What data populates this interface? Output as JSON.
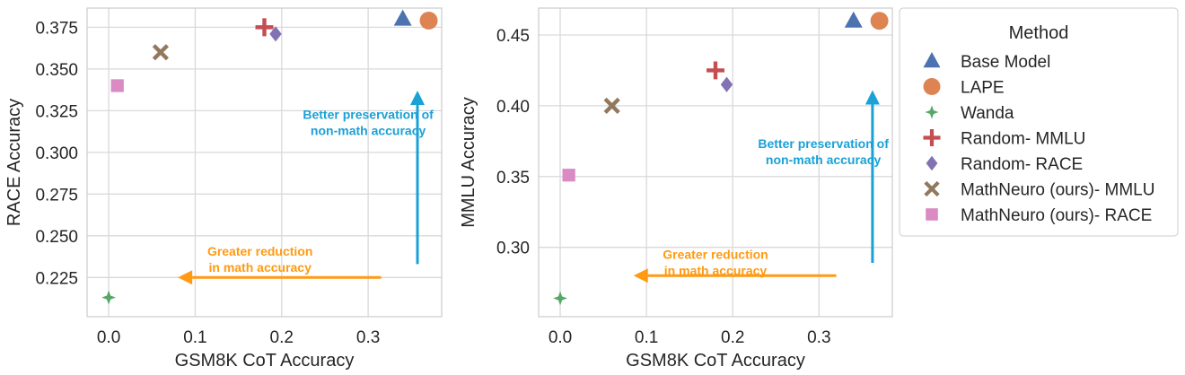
{
  "legend": {
    "title": "Method",
    "placement": "right",
    "entries": [
      {
        "label": "Base Model",
        "marker": "triangle",
        "color": "#4c72b0"
      },
      {
        "label": "LAPE",
        "marker": "circle",
        "color": "#dd8452"
      },
      {
        "label": "Wanda",
        "marker": "star4",
        "color": "#55a868"
      },
      {
        "label": "Random- MMLU",
        "marker": "plus",
        "color": "#c44e52"
      },
      {
        "label": "Random- RACE",
        "marker": "diamond",
        "color": "#8172b3"
      },
      {
        "label": "MathNeuro (ours)- MMLU",
        "marker": "x",
        "color": "#937860"
      },
      {
        "label": "MathNeuro (ours)- RACE",
        "marker": "square",
        "color": "#da8bc3"
      }
    ]
  },
  "chart_data": [
    {
      "type": "scatter",
      "title": "",
      "xlabel": "GSM8K CoT Accuracy",
      "ylabel": "RACE Accuracy",
      "xlim": [
        -0.025,
        0.385
      ],
      "ylim": [
        0.2015,
        0.3865
      ],
      "xticks": [
        0.0,
        0.1,
        0.2,
        0.3
      ],
      "xtick_labels": [
        "0.0",
        "0.1",
        "0.2",
        "0.3"
      ],
      "yticks": [
        0.225,
        0.25,
        0.275,
        0.3,
        0.325,
        0.35,
        0.375
      ],
      "ytick_labels": [
        "0.225",
        "0.250",
        "0.275",
        "0.300",
        "0.325",
        "0.350",
        "0.375"
      ],
      "grid": true,
      "series": [
        {
          "name": "Base Model",
          "x": [
            0.34
          ],
          "y": [
            0.38
          ]
        },
        {
          "name": "LAPE",
          "x": [
            0.37
          ],
          "y": [
            0.379
          ]
        },
        {
          "name": "Wanda",
          "x": [
            0.0
          ],
          "y": [
            0.213
          ]
        },
        {
          "name": "Random- MMLU",
          "x": [
            0.18
          ],
          "y": [
            0.375
          ]
        },
        {
          "name": "Random- RACE",
          "x": [
            0.193
          ],
          "y": [
            0.371
          ]
        },
        {
          "name": "MathNeuro (ours)- MMLU",
          "x": [
            0.06
          ],
          "y": [
            0.36
          ]
        },
        {
          "name": "MathNeuro (ours)- RACE",
          "x": [
            0.01
          ],
          "y": [
            0.34
          ]
        }
      ],
      "annotations": [
        {
          "lines": [
            "Better preservation of",
            "non-math accuracy"
          ],
          "color": "#1aa1d6",
          "arrow": "up",
          "from": [
            0.357,
            0.233
          ],
          "to": [
            0.357,
            0.337
          ],
          "text_at": [
            0.3,
            0.32
          ]
        },
        {
          "lines": [
            "Greater reduction",
            "in math accuracy"
          ],
          "color": "#ff9a12",
          "arrow": "left",
          "from": [
            0.315,
            0.225
          ],
          "to": [
            0.08,
            0.225
          ],
          "text_at": [
            0.175,
            0.238
          ]
        }
      ]
    },
    {
      "type": "scatter",
      "title": "",
      "xlabel": "GSM8K CoT Accuracy",
      "ylabel": "MMLU Accuracy",
      "xlim": [
        -0.025,
        0.385
      ],
      "ylim": [
        0.251,
        0.469
      ],
      "xticks": [
        0.0,
        0.1,
        0.2,
        0.3
      ],
      "xtick_labels": [
        "0.0",
        "0.1",
        "0.2",
        "0.3"
      ],
      "yticks": [
        0.3,
        0.35,
        0.4,
        0.45
      ],
      "ytick_labels": [
        "0.30",
        "0.35",
        "0.40",
        "0.45"
      ],
      "grid": true,
      "series": [
        {
          "name": "Base Model",
          "x": [
            0.34
          ],
          "y": [
            0.46
          ]
        },
        {
          "name": "LAPE",
          "x": [
            0.37
          ],
          "y": [
            0.46
          ]
        },
        {
          "name": "Wanda",
          "x": [
            0.0
          ],
          "y": [
            0.264
          ]
        },
        {
          "name": "Random- MMLU",
          "x": [
            0.18
          ],
          "y": [
            0.425
          ]
        },
        {
          "name": "Random- RACE",
          "x": [
            0.193
          ],
          "y": [
            0.415
          ]
        },
        {
          "name": "MathNeuro (ours)- MMLU",
          "x": [
            0.06
          ],
          "y": [
            0.4
          ]
        },
        {
          "name": "MathNeuro (ours)- RACE",
          "x": [
            0.01
          ],
          "y": [
            0.351
          ]
        }
      ],
      "annotations": [
        {
          "lines": [
            "Better preservation of",
            "non-math accuracy"
          ],
          "color": "#1aa1d6",
          "arrow": "up",
          "from": [
            0.362,
            0.289
          ],
          "to": [
            0.362,
            0.411
          ],
          "text_at": [
            0.305,
            0.37
          ]
        },
        {
          "lines": [
            "Greater reduction",
            "in math accuracy"
          ],
          "color": "#ff9a12",
          "arrow": "left",
          "from": [
            0.32,
            0.28
          ],
          "to": [
            0.085,
            0.28
          ],
          "text_at": [
            0.18,
            0.292
          ]
        }
      ]
    }
  ]
}
